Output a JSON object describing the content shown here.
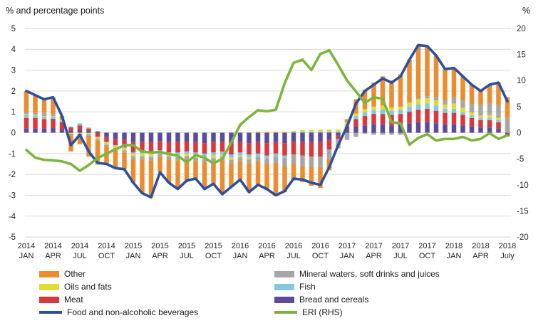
{
  "titles": {
    "left_axis_title": "% and percentage points",
    "right_axis_title": "%"
  },
  "chart_data": {
    "type": "bar",
    "subtype": "stacked-bar-with-lines-dual-axis",
    "title": "",
    "xlabel": "",
    "ylabel_left": "% and percentage points",
    "ylabel_right": "%",
    "grid": true,
    "legend_position": "bottom",
    "left_axis": {
      "min": -5,
      "max": 5,
      "step": 1,
      "ticks": [
        5,
        4,
        3,
        2,
        1,
        0,
        -1,
        -2,
        -3,
        -4,
        -5
      ]
    },
    "right_axis": {
      "min": -20,
      "max": 20,
      "step": 5,
      "ticks": [
        20,
        15,
        10,
        5,
        0,
        -5,
        -10,
        -15,
        -20
      ]
    },
    "x_ticks": [
      {
        "year": "2014",
        "month": "JAN"
      },
      {
        "year": "2014",
        "month": "APR"
      },
      {
        "year": "2014",
        "month": "JUL"
      },
      {
        "year": "2014",
        "month": "OCT"
      },
      {
        "year": "2015",
        "month": "JAN"
      },
      {
        "year": "2015",
        "month": "APR"
      },
      {
        "year": "2015",
        "month": "JUL"
      },
      {
        "year": "2015",
        "month": "OCT"
      },
      {
        "year": "2016",
        "month": "JAN"
      },
      {
        "year": "2016",
        "month": "APR"
      },
      {
        "year": "2016",
        "month": "JUL"
      },
      {
        "year": "2016",
        "month": "OCT"
      },
      {
        "year": "2017",
        "month": "JAN"
      },
      {
        "year": "2017",
        "month": "APR"
      },
      {
        "year": "2017",
        "month": "JUL"
      },
      {
        "year": "2017",
        "month": "OCT"
      },
      {
        "year": "2018",
        "month": "JAN"
      },
      {
        "year": "2018",
        "month": "APR"
      },
      {
        "year": "2018",
        "month": "July"
      }
    ],
    "x_tick_every": 3,
    "n_points": 55,
    "x_start": "2014 JAN",
    "x_end": "2018 July",
    "bar_series": [
      {
        "name": "Bread and cereals",
        "color": "#5C4B9B",
        "values": [
          0.2,
          0.2,
          0.2,
          0.22,
          0.15,
          0.1,
          0.15,
          0.1,
          0.05,
          -0.2,
          -0.3,
          -0.35,
          -0.45,
          -0.45,
          -0.45,
          -0.4,
          -0.45,
          -0.45,
          -0.45,
          -0.45,
          -0.5,
          -0.45,
          -0.45,
          -0.5,
          -0.45,
          -0.5,
          -0.45,
          -0.5,
          -0.45,
          -0.5,
          -0.45,
          -0.45,
          -0.45,
          -0.45,
          -0.35,
          -0.15,
          0.15,
          0.3,
          0.35,
          0.4,
          0.4,
          0.35,
          0.4,
          0.45,
          0.5,
          0.5,
          0.45,
          0.4,
          0.4,
          0.35,
          0.3,
          0.25,
          0.25,
          0.2,
          -0.07
        ]
      },
      {
        "name": "Meat",
        "color": "#D8383E",
        "values": [
          0.5,
          0.5,
          0.45,
          0.45,
          0.35,
          0.15,
          0.2,
          0.1,
          -0.2,
          -0.25,
          -0.3,
          -0.35,
          -0.5,
          -0.5,
          -0.55,
          -0.45,
          -0.5,
          -0.5,
          -0.45,
          -0.5,
          -0.5,
          -0.5,
          -0.45,
          -0.55,
          -0.5,
          -0.55,
          -0.55,
          -0.6,
          -0.55,
          -0.6,
          -0.6,
          -0.65,
          -0.7,
          -0.7,
          -0.45,
          -0.15,
          0.15,
          0.35,
          0.45,
          0.5,
          0.5,
          0.5,
          0.5,
          0.55,
          0.6,
          0.65,
          0.6,
          0.55,
          0.55,
          0.5,
          0.4,
          0.35,
          0.35,
          0.3,
          -0.08
        ]
      },
      {
        "name": "Fish",
        "color": "#85C7DE",
        "values": [
          0.15,
          0.12,
          0.12,
          0.1,
          0.08,
          0.05,
          0.1,
          0.05,
          0.03,
          -0.02,
          -0.03,
          -0.05,
          -0.05,
          -0.05,
          -0.05,
          -0.05,
          -0.08,
          -0.1,
          -0.12,
          -0.15,
          -0.15,
          -0.15,
          -0.15,
          -0.15,
          -0.15,
          -0.15,
          -0.15,
          -0.15,
          -0.14,
          -0.12,
          0.03,
          0.04,
          0.04,
          0.05,
          0.05,
          0.05,
          0.1,
          0.15,
          0.18,
          0.2,
          0.22,
          0.2,
          0.2,
          0.25,
          0.25,
          0.25,
          0.25,
          0.2,
          0.2,
          0.15,
          0.12,
          0.1,
          0.1,
          0.1,
          -0.05
        ]
      },
      {
        "name": "Oils and fats",
        "color": "#E2DB33",
        "values": [
          0.05,
          0.04,
          0.03,
          0.03,
          0.02,
          -0.05,
          -0.05,
          -0.08,
          -0.1,
          -0.1,
          -0.1,
          -0.1,
          -0.12,
          -0.12,
          -0.12,
          -0.1,
          -0.1,
          -0.12,
          -0.1,
          -0.1,
          -0.12,
          -0.12,
          -0.1,
          -0.1,
          -0.08,
          -0.08,
          0.05,
          0.05,
          0.05,
          0.05,
          0.06,
          0.08,
          0.1,
          0.1,
          0.1,
          0.1,
          0.1,
          0.12,
          0.15,
          0.15,
          0.18,
          0.15,
          0.15,
          0.2,
          0.25,
          0.25,
          0.25,
          0.2,
          0.25,
          0.2,
          0.15,
          0.12,
          0.15,
          0.12,
          0.02
        ]
      },
      {
        "name": "Mineral waters, soft drinks and juices",
        "color": "#A6A6A6",
        "values": [
          0.1,
          0.09,
          0.15,
          0.1,
          0.05,
          -0.05,
          -0.05,
          -0.07,
          -0.08,
          -0.08,
          -0.1,
          -0.1,
          -0.15,
          -0.15,
          -0.15,
          -0.15,
          -0.15,
          -0.15,
          -0.15,
          -0.15,
          -0.15,
          -0.17,
          -0.17,
          -0.18,
          -0.2,
          -0.2,
          -0.22,
          -0.25,
          -0.3,
          -0.4,
          -0.45,
          -0.5,
          -0.5,
          -0.5,
          -0.45,
          -0.4,
          -0.35,
          -0.2,
          -0.05,
          -0.1,
          -0.1,
          -0.1,
          -0.1,
          0.0,
          0.05,
          0.1,
          0.15,
          0.2,
          0.3,
          0.35,
          0.4,
          0.5,
          0.55,
          0.6,
          0.7
        ]
      },
      {
        "name": "Other",
        "color": "#ED8C2D",
        "values": [
          1.0,
          0.85,
          0.65,
          0.8,
          0.15,
          -0.8,
          -0.45,
          -1.0,
          -1.15,
          -0.85,
          -0.87,
          -0.8,
          -1.13,
          -1.63,
          -1.78,
          -0.75,
          -1.12,
          -1.38,
          -1.03,
          -0.85,
          -1.28,
          -1.06,
          -1.63,
          -1.12,
          -0.87,
          -1.37,
          -1.18,
          -1.25,
          -1.61,
          -1.23,
          -0.79,
          -0.77,
          -0.89,
          -1.0,
          -0.55,
          -0.05,
          0.15,
          0.68,
          0.92,
          1.15,
          1.4,
          1.3,
          1.55,
          2.05,
          2.55,
          2.4,
          2.0,
          1.5,
          1.4,
          1.15,
          0.93,
          0.68,
          0.9,
          1.08,
          0.98
        ]
      }
    ],
    "line_series": [
      {
        "name": "Food and non-alcoholic beverages",
        "axis": "left",
        "color": "#2C4FA0",
        "values": [
          2.0,
          1.8,
          1.6,
          1.7,
          0.8,
          -0.6,
          -0.1,
          -0.9,
          -1.45,
          -1.5,
          -1.7,
          -1.75,
          -2.4,
          -2.9,
          -3.1,
          -1.9,
          -2.4,
          -2.7,
          -2.3,
          -2.2,
          -2.7,
          -2.45,
          -2.95,
          -2.6,
          -2.25,
          -2.85,
          -2.5,
          -2.7,
          -3.0,
          -2.8,
          -2.2,
          -2.25,
          -2.4,
          -2.5,
          -1.65,
          -0.6,
          0.3,
          1.4,
          2.0,
          2.3,
          2.6,
          2.4,
          2.7,
          3.5,
          4.2,
          4.15,
          3.7,
          3.05,
          3.1,
          2.7,
          2.3,
          2.0,
          2.3,
          2.4,
          1.5
        ]
      },
      {
        "name": "ERI (RHS)",
        "axis": "right",
        "color": "#7CB53C",
        "values": [
          -3.3,
          -4.8,
          -5.2,
          -5.3,
          -5.5,
          -6.0,
          -7.3,
          -6.2,
          -4.9,
          -4.0,
          -3.2,
          -2.4,
          -2.4,
          -3.6,
          -3.8,
          -3.7,
          -4.1,
          -4.4,
          -5.7,
          -4.3,
          -4.8,
          -5.9,
          -5.0,
          -1.9,
          1.5,
          3.0,
          4.3,
          4.1,
          4.4,
          9.5,
          13.4,
          14.0,
          12.0,
          15.1,
          15.8,
          13.0,
          10.0,
          7.9,
          5.7,
          6.8,
          6.5,
          2.0,
          1.8,
          -2.3,
          -1.0,
          -0.3,
          -1.5,
          -1.2,
          -1.2,
          -0.8,
          -1.5,
          -1.2,
          -0.1,
          -1.2,
          -0.5
        ]
      }
    ],
    "colors": {
      "other": "#ED8C2D",
      "oils_and_fats": "#E2DB33",
      "meat": "#D8383E",
      "food_line": "#2C4FA0",
      "mineral_waters": "#A6A6A6",
      "fish": "#85C7DE",
      "bread_and_cereals": "#5C4B9B",
      "eri_line": "#7CB53C",
      "gridline": "#D9D9D9",
      "text": "#262626"
    }
  },
  "legend": {
    "columns": [
      [
        {
          "label": "Other",
          "swatch": "bar",
          "color": "#ED8C2D"
        },
        {
          "label": "Oils and fats",
          "swatch": "bar",
          "color": "#E2DB33"
        },
        {
          "label": "Meat",
          "swatch": "bar",
          "color": "#D8383E"
        },
        {
          "label": "Food and non-alcoholic beverages",
          "swatch": "line",
          "color": "#2C4FA0"
        }
      ],
      [
        {
          "label": "Mineral waters, soft drinks and juices",
          "swatch": "bar",
          "color": "#A6A6A6"
        },
        {
          "label": "Fish",
          "swatch": "bar",
          "color": "#85C7DE"
        },
        {
          "label": "Bread and cereals",
          "swatch": "bar",
          "color": "#5C4B9B"
        },
        {
          "label": "ERI (RHS)",
          "swatch": "line",
          "color": "#7CB53C"
        }
      ]
    ]
  }
}
